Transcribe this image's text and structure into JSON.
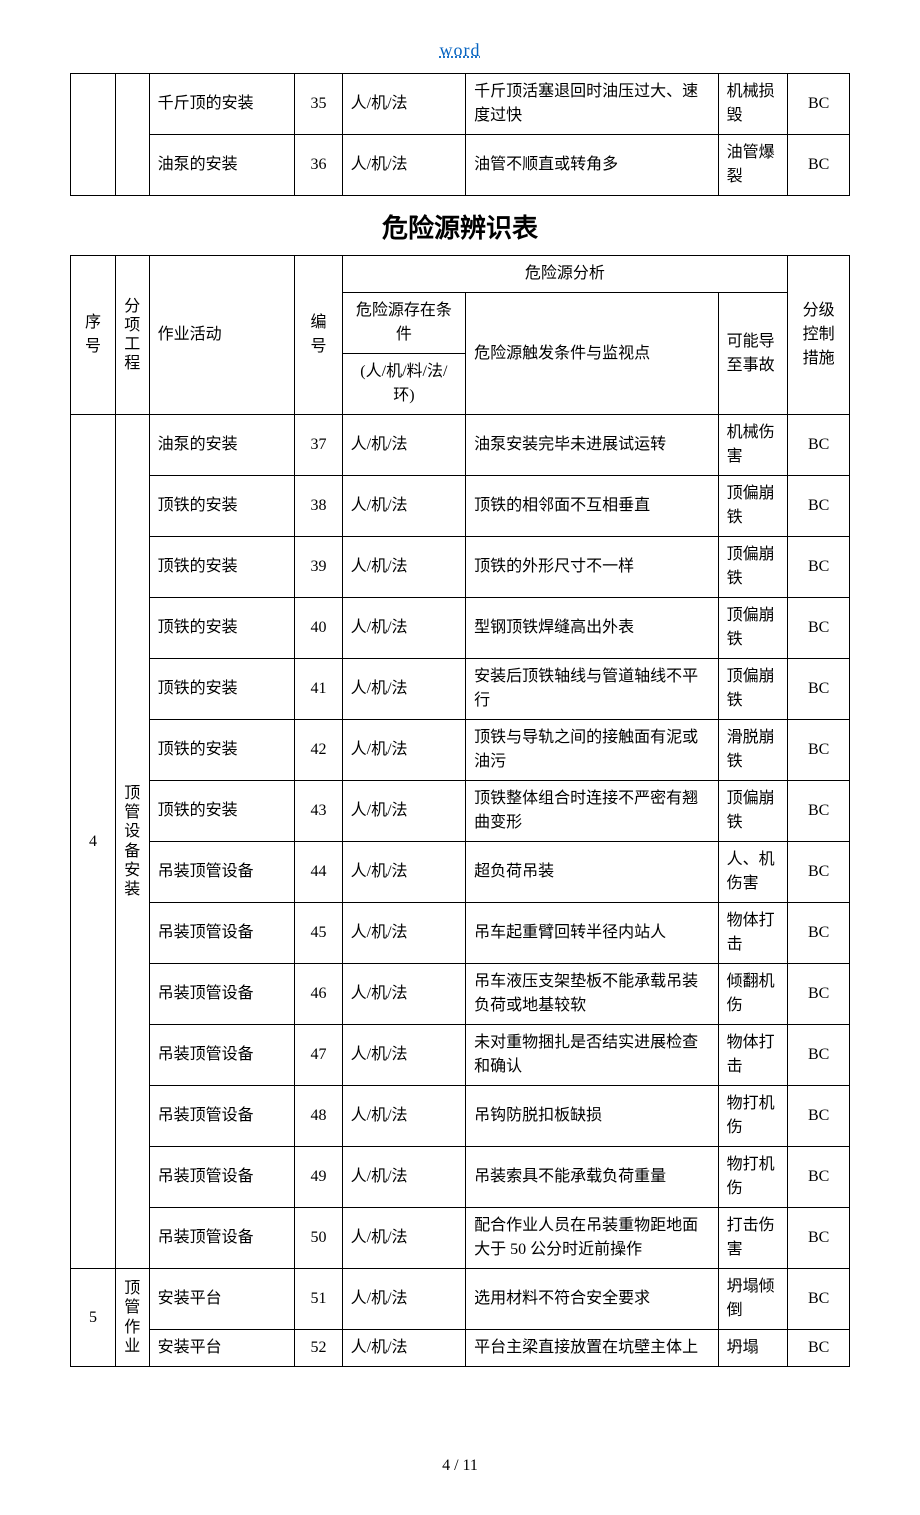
{
  "header": {
    "link_text": "word"
  },
  "title": "危险源辨识表",
  "footer": {
    "page": "4 / 11"
  },
  "topTable": {
    "rows": [
      {
        "activity": "千斤顶的安装",
        "num": "35",
        "cond": "人/机/法",
        "trigger": "千斤顶活塞退回时油压过大、速度过快",
        "accident": "机械损毁",
        "control": "BC"
      },
      {
        "activity": "油泵的安装",
        "num": "36",
        "cond": "人/机/法",
        "trigger": "油管不顺直或转角多",
        "accident": "油管爆裂",
        "control": "BC"
      }
    ]
  },
  "headerLabels": {
    "seq": "序号",
    "proj": "分项工程",
    "activity": "作业活动",
    "num": "编号",
    "analysis": "危险源分析",
    "cond1": "危险源存在条件",
    "cond2": "(人/机/料/法/环)",
    "trigger": "危险源触发条件与监视点",
    "accident": "可能导至事故",
    "control": "分级控制措施"
  },
  "group4": {
    "seq": "4",
    "proj": "顶管设备安装",
    "rows": [
      {
        "activity": "油泵的安装",
        "num": "37",
        "cond": "人/机/法",
        "trigger": "油泵安装完毕未进展试运转",
        "accident": "机械伤害",
        "control": "BC"
      },
      {
        "activity": "顶铁的安装",
        "num": "38",
        "cond": "人/机/法",
        "trigger": "顶铁的相邻面不互相垂直",
        "accident": "顶偏崩铁",
        "control": "BC"
      },
      {
        "activity": "顶铁的安装",
        "num": "39",
        "cond": "人/机/法",
        "trigger": "顶铁的外形尺寸不一样",
        "accident": "顶偏崩铁",
        "control": "BC"
      },
      {
        "activity": "顶铁的安装",
        "num": "40",
        "cond": "人/机/法",
        "trigger": "型钢顶铁焊缝高出外表",
        "accident": "顶偏崩铁",
        "control": "BC"
      },
      {
        "activity": "顶铁的安装",
        "num": "41",
        "cond": "人/机/法",
        "trigger": "安装后顶铁轴线与管道轴线不平行",
        "accident": "顶偏崩铁",
        "control": "BC"
      },
      {
        "activity": "顶铁的安装",
        "num": "42",
        "cond": "人/机/法",
        "trigger": "顶铁与导轨之间的接触面有泥或油污",
        "accident": "滑脱崩铁",
        "control": "BC"
      },
      {
        "activity": "顶铁的安装",
        "num": "43",
        "cond": "人/机/法",
        "trigger": "顶铁整体组合时连接不严密有翘曲变形",
        "accident": "顶偏崩铁",
        "control": "BC"
      },
      {
        "activity": "吊装顶管设备",
        "num": "44",
        "cond": "人/机/法",
        "trigger": "超负荷吊装",
        "accident": "人、机伤害",
        "control": "BC"
      },
      {
        "activity": "吊装顶管设备",
        "num": "45",
        "cond": "人/机/法",
        "trigger": "吊车起重臂回转半径内站人",
        "accident": "物体打击",
        "control": "BC"
      },
      {
        "activity": "吊装顶管设备",
        "num": "46",
        "cond": "人/机/法",
        "trigger": "吊车液压支架垫板不能承载吊装负荷或地基较软",
        "accident": "倾翻机伤",
        "control": "BC"
      },
      {
        "activity": "吊装顶管设备",
        "num": "47",
        "cond": "人/机/法",
        "trigger": "未对重物捆扎是否结实进展检查和确认",
        "accident": "物体打击",
        "control": "BC"
      },
      {
        "activity": "吊装顶管设备",
        "num": "48",
        "cond": "人/机/法",
        "trigger": "吊钩防脱扣板缺损",
        "accident": "物打机伤",
        "control": "BC"
      },
      {
        "activity": "吊装顶管设备",
        "num": "49",
        "cond": "人/机/法",
        "trigger": "吊装索具不能承载负荷重量",
        "accident": "物打机伤",
        "control": "BC"
      },
      {
        "activity": "吊装顶管设备",
        "num": "50",
        "cond": "人/机/法",
        "trigger": "配合作业人员在吊装重物距地面大于 50 公分时近前操作",
        "accident": "打击伤害",
        "control": "BC"
      }
    ]
  },
  "group5": {
    "seq": "5",
    "proj": "顶管作业",
    "rows": [
      {
        "activity": "安装平台",
        "num": "51",
        "cond": "人/机/法",
        "trigger": "选用材料不符合安全要求",
        "accident": "坍塌倾倒",
        "control": "BC"
      },
      {
        "activity": "安装平台",
        "num": "52",
        "cond": "人/机/法",
        "trigger": "平台主梁直接放置在坑壁主体上",
        "accident": "坍塌",
        "control": "BC"
      }
    ]
  }
}
